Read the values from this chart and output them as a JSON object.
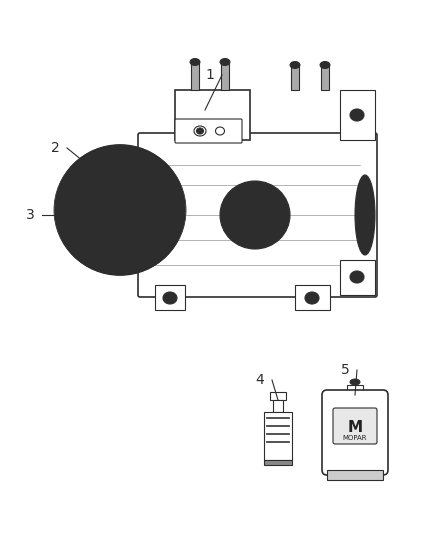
{
  "background_color": "#ffffff",
  "line_color": "#2d2d2d",
  "label_color": "#2d2d2d",
  "callout_labels": [
    "1",
    "2",
    "3",
    "4",
    "5"
  ],
  "title": "",
  "figsize": [
    4.38,
    5.33
  ],
  "dpi": 100
}
